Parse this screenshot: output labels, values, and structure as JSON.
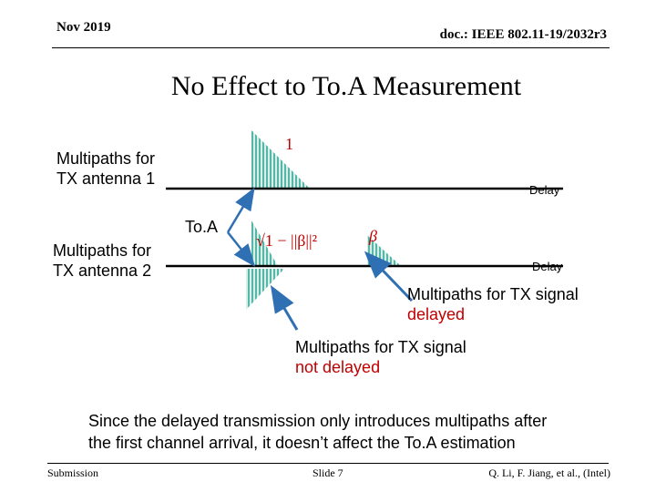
{
  "header": {
    "date": "Nov 2019",
    "doc_id": "doc.: IEEE 802.11-19/2032r3"
  },
  "title": "No Effect to To.A Measurement",
  "diagram": {
    "label_tx1": [
      "Multipaths for",
      "TX antenna 1"
    ],
    "label_tx2": [
      "Multipaths for",
      "TX antenna 2"
    ],
    "delay_axis_1": "Delay",
    "delay_axis_2": "Delay",
    "toa": "To.A",
    "amp_one": "1",
    "amp_beta": "β",
    "amp_sqrt": "√1 − ||β||²",
    "callout_delayed": {
      "line1": "Multipaths for TX signal",
      "line2": "delayed"
    },
    "callout_not_delayed": {
      "line1": "Multipaths for TX signal",
      "line2": "not delayed"
    },
    "colors": {
      "hatch": "#1e9e8c",
      "fill": "#d7efe8",
      "arrow": "#2f6fb3",
      "math": "#c00000"
    }
  },
  "summary": [
    "Since the delayed transmission only introduces multipaths after",
    "the first channel arrival, it doesn’t affect the To.A estimation"
  ],
  "footer": {
    "left": "Submission",
    "center": "Slide 7",
    "right": "Q. Li, F. Jiang, et al., (Intel)"
  }
}
